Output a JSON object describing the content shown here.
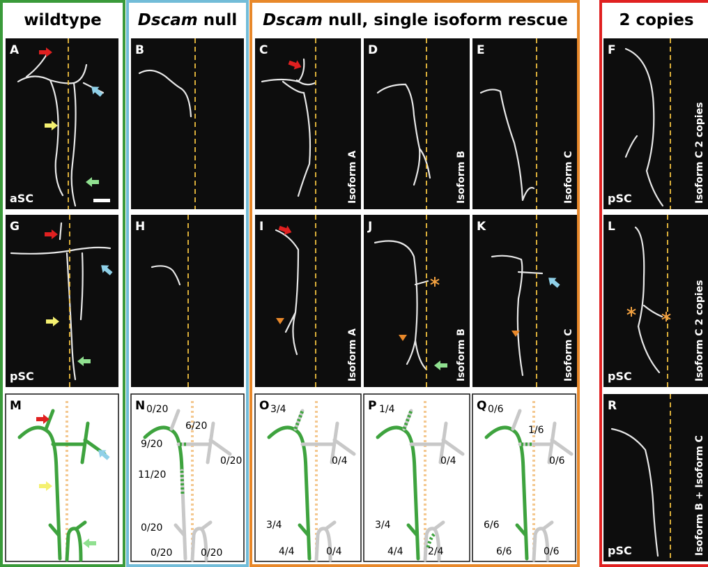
{
  "headers": {
    "wildtype": "wildtype",
    "dscam_null": {
      "gene": "Dscam",
      "rest": " null"
    },
    "rescue": {
      "gene": "Dscam",
      "rest": " null, single isoform rescue"
    },
    "copies": "2 copies"
  },
  "panels": [
    {
      "letter": "A",
      "label": "aSC"
    },
    {
      "letter": "B"
    },
    {
      "letter": "C",
      "side_label": "Isoform A"
    },
    {
      "letter": "D",
      "side_label": "Isoform B"
    },
    {
      "letter": "E",
      "side_label": "Isoform C"
    },
    {
      "letter": "F",
      "label": "pSC",
      "side_label": "Isoform C  2 copies"
    },
    {
      "letter": "G",
      "label": "pSC"
    },
    {
      "letter": "H"
    },
    {
      "letter": "I",
      "side_label": "Isoform A"
    },
    {
      "letter": "J",
      "side_label": "Isoform B"
    },
    {
      "letter": "K",
      "side_label": "Isoform C"
    },
    {
      "letter": "L",
      "label": "pSC",
      "side_label": "Isoform C  2 copies"
    },
    {
      "letter": "R",
      "label": "pSC",
      "side_label": "Isoform B + Isoform C"
    }
  ],
  "schematics": [
    {
      "letter": "M"
    },
    {
      "letter": "N",
      "fractions": [
        "0/20",
        "6/20",
        "9/20",
        "0/20",
        "11/20",
        "0/20",
        "0/20",
        "0/20"
      ]
    },
    {
      "letter": "O",
      "fractions": [
        "3/4",
        "0/4",
        "3/4",
        "4/4",
        "0/4"
      ]
    },
    {
      "letter": "P",
      "fractions": [
        "1/4",
        "0/4",
        "3/4",
        "4/4",
        "2/4"
      ]
    },
    {
      "letter": "Q",
      "fractions": [
        "0/6",
        "1/6",
        "0/6",
        "6/6",
        "6/6",
        "0/6"
      ]
    }
  ]
}
